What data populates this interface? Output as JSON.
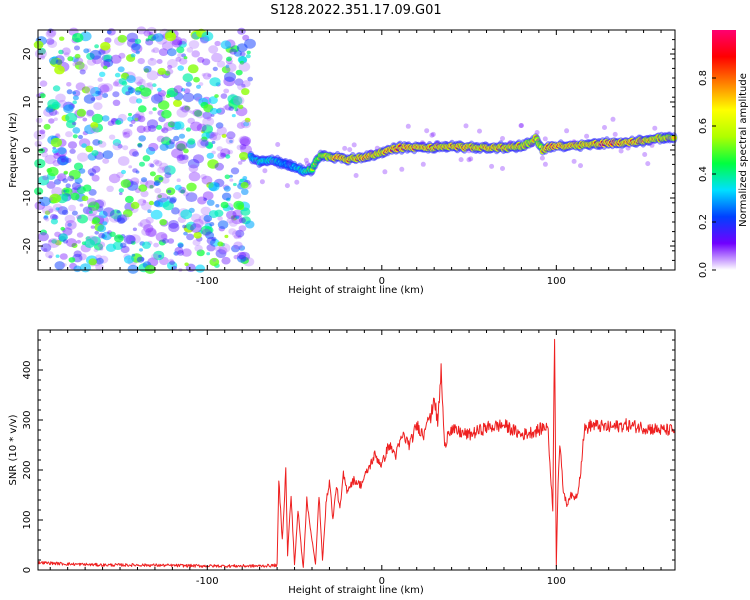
{
  "title": "S128.2022.351.17.09.G01",
  "chart_data": [
    {
      "type": "heatmap",
      "xlabel": "Height of straight line (km)",
      "ylabel": "Frequency (Hz)",
      "xlim": [
        -197,
        168
      ],
      "ylim": [
        -25,
        25
      ],
      "x_ticks": [
        -100,
        0,
        100
      ],
      "y_ticks": [
        -20,
        -10,
        0,
        10,
        20
      ],
      "colorbar": {
        "label": "Normalized spectral amplitude",
        "range": [
          0.0,
          1.0
        ],
        "ticks": [
          "0.0",
          "0.2",
          "0.4",
          "0.6",
          "0.8"
        ],
        "colors": [
          "#ffffff",
          "#7000ff",
          "#0040ff",
          "#00e0ff",
          "#00ff40",
          "#b0ff00",
          "#ffff00",
          "#ff8000",
          "#ff0000",
          "#ff0070"
        ]
      },
      "noise_region_x": [
        -197,
        -75
      ],
      "ridge": {
        "x": [
          -75,
          -70,
          -65,
          -60,
          -55,
          -50,
          -45,
          -40,
          -35,
          -30,
          -25,
          -20,
          -10,
          0,
          10,
          20,
          30,
          40,
          50,
          60,
          70,
          80,
          85,
          88,
          90,
          92,
          95,
          100,
          110,
          120,
          130,
          140,
          150,
          160,
          168
        ],
        "y": [
          -1.5,
          -2.5,
          -2.0,
          -2.5,
          -3.0,
          -3.5,
          -4.5,
          -4.0,
          -1.0,
          -1.5,
          -1.5,
          -2.0,
          -1.5,
          -0.5,
          0.5,
          0.5,
          0.5,
          0.8,
          0.5,
          0.5,
          0.5,
          0.8,
          1.5,
          2.5,
          1.5,
          0.0,
          0.5,
          0.8,
          1.0,
          1.2,
          1.5,
          1.5,
          2.0,
          2.5,
          2.5
        ],
        "amplitude": [
          0.4,
          0.45,
          0.45,
          0.4,
          0.35,
          0.4,
          0.45,
          0.6,
          0.7,
          0.75,
          0.95,
          0.85,
          0.9,
          0.85,
          0.95,
          0.9,
          0.85,
          0.9,
          0.85,
          0.9,
          0.85,
          0.8,
          0.7,
          0.8,
          0.7,
          0.75,
          0.9,
          0.95,
          0.85,
          0.85,
          0.95,
          0.9,
          0.85,
          0.8,
          0.75
        ]
      }
    },
    {
      "type": "line",
      "xlabel": "Height of straight line (km)",
      "ylabel": "SNR (10 * v/v)",
      "xlim": [
        -197,
        168
      ],
      "ylim": [
        0,
        480
      ],
      "x_ticks": [
        -100,
        0,
        100
      ],
      "y_ticks": [
        0,
        100,
        200,
        300,
        400
      ],
      "color": "#ee2020",
      "x": [
        -197,
        -180,
        -160,
        -140,
        -120,
        -100,
        -80,
        -70,
        -62,
        -60,
        -59,
        -57,
        -55,
        -54,
        -52,
        -50,
        -48,
        -46,
        -45,
        -43,
        -40,
        -38,
        -36,
        -34,
        -32,
        -30,
        -28,
        -26,
        -24,
        -22,
        -20,
        -16,
        -12,
        -8,
        -4,
        0,
        4,
        8,
        12,
        16,
        20,
        24,
        26,
        28,
        30,
        32,
        34,
        36,
        38,
        40,
        50,
        60,
        70,
        80,
        90,
        95,
        98,
        99,
        100,
        101,
        102,
        104,
        106,
        108,
        110,
        112,
        114,
        116,
        120,
        130,
        140,
        150,
        160,
        168
      ],
      "y": [
        15,
        12,
        10,
        10,
        9,
        8,
        8,
        8,
        9,
        10,
        180,
        60,
        200,
        30,
        150,
        10,
        120,
        40,
        5,
        140,
        60,
        10,
        150,
        20,
        130,
        180,
        100,
        170,
        120,
        190,
        160,
        180,
        170,
        200,
        230,
        210,
        250,
        230,
        270,
        250,
        290,
        270,
        310,
        300,
        350,
        290,
        400,
        240,
        280,
        280,
        270,
        285,
        290,
        270,
        280,
        290,
        120,
        480,
        10,
        180,
        250,
        160,
        130,
        150,
        145,
        150,
        200,
        280,
        290,
        285,
        290,
        285,
        280,
        280
      ]
    }
  ]
}
